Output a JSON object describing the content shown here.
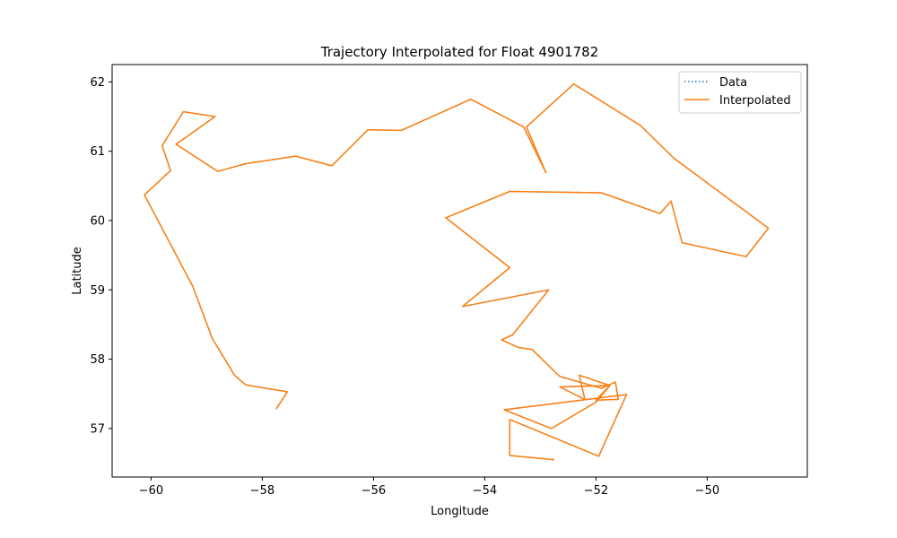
{
  "chart_data": {
    "type": "line",
    "title": "Trajectory Interpolated for Float 4901782",
    "xlabel": "Longitude",
    "ylabel": "Latitude",
    "xlim": [
      -60.7,
      -48.2
    ],
    "ylim": [
      56.3,
      62.25
    ],
    "xticks": [
      -60,
      -58,
      -56,
      -54,
      -52,
      -50
    ],
    "yticks": [
      57,
      58,
      59,
      60,
      61,
      62
    ],
    "xtick_labels": [
      "−60",
      "−58",
      "−56",
      "−54",
      "−52",
      "−50"
    ],
    "ytick_labels": [
      "57",
      "58",
      "59",
      "60",
      "61",
      "62"
    ],
    "grid": false,
    "legend_position": "top-right",
    "series": [
      {
        "name": "Data",
        "style": "dotted",
        "color": "#1f77b4",
        "points": [
          [
            -57.75,
            57.28
          ],
          [
            -57.55,
            57.53
          ],
          [
            -58.3,
            57.63
          ],
          [
            -58.5,
            57.77
          ],
          [
            -58.9,
            58.3
          ],
          [
            -59.25,
            59.05
          ],
          [
            -60.12,
            60.37
          ],
          [
            -59.65,
            60.72
          ],
          [
            -59.8,
            61.08
          ],
          [
            -59.42,
            61.57
          ],
          [
            -58.85,
            61.5
          ],
          [
            -59.55,
            61.1
          ],
          [
            -58.8,
            60.71
          ],
          [
            -58.3,
            60.82
          ],
          [
            -57.4,
            60.93
          ],
          [
            -56.75,
            60.79
          ],
          [
            -56.1,
            61.31
          ],
          [
            -55.5,
            61.3
          ],
          [
            -54.25,
            61.75
          ],
          [
            -53.3,
            61.35
          ],
          [
            -52.9,
            60.69
          ],
          [
            -53.25,
            61.35
          ],
          [
            -52.4,
            61.97
          ],
          [
            -51.2,
            61.37
          ],
          [
            -50.6,
            60.9
          ],
          [
            -48.9,
            59.89
          ],
          [
            -49.3,
            59.48
          ],
          [
            -50.45,
            59.68
          ],
          [
            -50.65,
            60.28
          ],
          [
            -50.85,
            60.1
          ],
          [
            -51.9,
            60.4
          ],
          [
            -53.55,
            60.42
          ],
          [
            -54.7,
            60.04
          ],
          [
            -53.55,
            59.32
          ],
          [
            -54.4,
            58.76
          ],
          [
            -52.85,
            59.0
          ],
          [
            -53.5,
            58.35
          ],
          [
            -53.7,
            58.28
          ],
          [
            -53.4,
            58.17
          ],
          [
            -53.15,
            58.14
          ],
          [
            -52.65,
            57.75
          ],
          [
            -51.9,
            57.58
          ],
          [
            -51.65,
            57.67
          ],
          [
            -51.6,
            57.42
          ],
          [
            -52.0,
            57.41
          ],
          [
            -51.75,
            57.62
          ],
          [
            -52.65,
            57.6
          ],
          [
            -52.2,
            57.42
          ],
          [
            -52.3,
            57.77
          ],
          [
            -51.75,
            57.62
          ],
          [
            -52.0,
            57.38
          ],
          [
            -52.8,
            57.0
          ],
          [
            -53.65,
            57.27
          ],
          [
            -51.45,
            57.49
          ],
          [
            -51.95,
            56.6
          ],
          [
            -53.55,
            57.13
          ],
          [
            -53.55,
            56.61
          ],
          [
            -52.75,
            56.55
          ]
        ]
      },
      {
        "name": "Interpolated",
        "style": "solid",
        "color": "#ff7f0e",
        "points": [
          [
            -57.75,
            57.28
          ],
          [
            -57.55,
            57.53
          ],
          [
            -58.3,
            57.63
          ],
          [
            -58.5,
            57.77
          ],
          [
            -58.9,
            58.3
          ],
          [
            -59.25,
            59.05
          ],
          [
            -60.12,
            60.37
          ],
          [
            -59.65,
            60.72
          ],
          [
            -59.8,
            61.08
          ],
          [
            -59.42,
            61.57
          ],
          [
            -58.85,
            61.5
          ],
          [
            -59.55,
            61.1
          ],
          [
            -58.8,
            60.71
          ],
          [
            -58.3,
            60.82
          ],
          [
            -57.4,
            60.93
          ],
          [
            -56.75,
            60.79
          ],
          [
            -56.1,
            61.31
          ],
          [
            -55.5,
            61.3
          ],
          [
            -54.25,
            61.75
          ],
          [
            -53.3,
            61.35
          ],
          [
            -52.9,
            60.69
          ],
          [
            -53.25,
            61.35
          ],
          [
            -52.4,
            61.97
          ],
          [
            -51.2,
            61.37
          ],
          [
            -50.6,
            60.9
          ],
          [
            -48.9,
            59.89
          ],
          [
            -49.3,
            59.48
          ],
          [
            -50.45,
            59.68
          ],
          [
            -50.65,
            60.28
          ],
          [
            -50.85,
            60.1
          ],
          [
            -51.9,
            60.4
          ],
          [
            -53.55,
            60.42
          ],
          [
            -54.7,
            60.04
          ],
          [
            -53.55,
            59.32
          ],
          [
            -54.4,
            58.76
          ],
          [
            -52.85,
            59.0
          ],
          [
            -53.5,
            58.35
          ],
          [
            -53.7,
            58.28
          ],
          [
            -53.4,
            58.17
          ],
          [
            -53.15,
            58.14
          ],
          [
            -52.65,
            57.75
          ],
          [
            -51.9,
            57.58
          ],
          [
            -51.65,
            57.67
          ],
          [
            -51.6,
            57.42
          ],
          [
            -52.0,
            57.41
          ],
          [
            -51.75,
            57.62
          ],
          [
            -52.65,
            57.6
          ],
          [
            -52.2,
            57.42
          ],
          [
            -52.3,
            57.77
          ],
          [
            -51.75,
            57.62
          ],
          [
            -52.0,
            57.38
          ],
          [
            -52.8,
            57.0
          ],
          [
            -53.65,
            57.27
          ],
          [
            -51.45,
            57.49
          ],
          [
            -51.95,
            56.6
          ],
          [
            -53.55,
            57.13
          ],
          [
            -53.55,
            56.61
          ],
          [
            -52.75,
            56.55
          ]
        ]
      }
    ]
  }
}
